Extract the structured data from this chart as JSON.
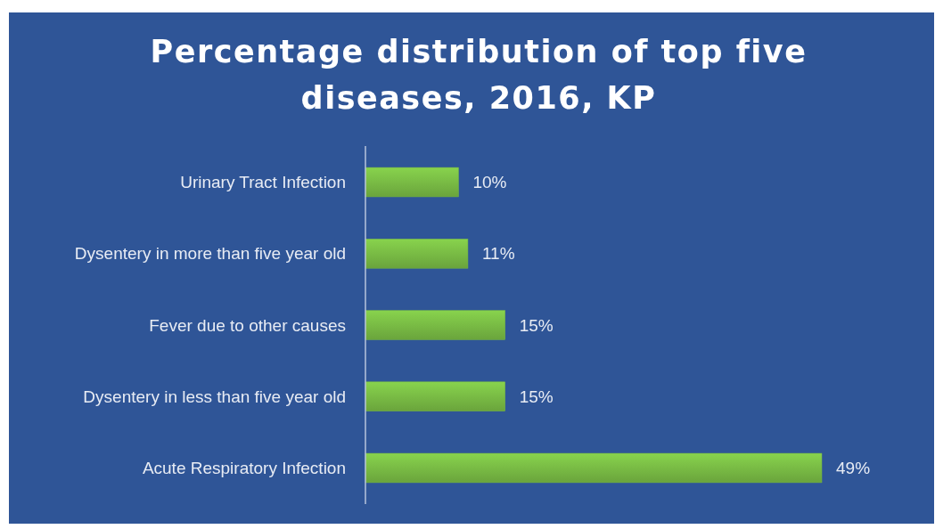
{
  "chart_data": {
    "type": "bar",
    "orientation": "horizontal",
    "title": "Percentage distribution of top five diseases, 2016, KP",
    "categories": [
      "Urinary Tract Infection",
      "Dysentery in more than five year old",
      "Fever due to other causes",
      "Dysentery in less than five year old",
      "Acute Respiratory Infection"
    ],
    "values": [
      10,
      11,
      15,
      15,
      49
    ],
    "value_labels": [
      "10%",
      "11%",
      "15%",
      "15%",
      "49%"
    ],
    "color": "#76b743"
  }
}
